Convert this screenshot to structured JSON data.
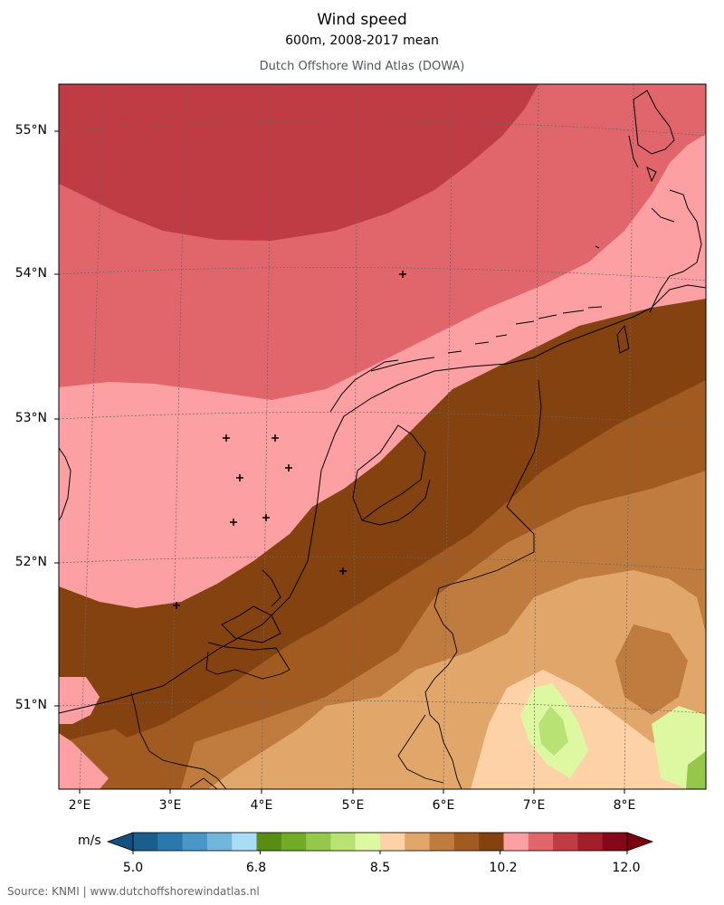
{
  "header": {
    "title": "Wind speed",
    "subtitle": "600m, 2008-2017 mean",
    "source_title": "Dutch Offshore Wind Atlas (DOWA)"
  },
  "map": {
    "lat_labels": [
      "55°N",
      "54°N",
      "53°N",
      "52°N",
      "51°N"
    ],
    "lon_labels": [
      "2°E",
      "3°E",
      "4°E",
      "5°E",
      "6°E",
      "7°E",
      "8°E"
    ],
    "lat_ticks": [
      55,
      54,
      53,
      52,
      51
    ],
    "lon_ticks": [
      2,
      3,
      4,
      5,
      6,
      7,
      8
    ]
  },
  "colorbar": {
    "unit": "m/s",
    "tick_labels": [
      "5.0",
      "6.8",
      "8.5",
      "10.2",
      "12.0"
    ],
    "tick_values": [
      5.0,
      6.8,
      8.5,
      10.2,
      12.0
    ],
    "range": [
      5.0,
      12.0
    ],
    "colors": [
      "#1a5e8c",
      "#2a78ad",
      "#4a96c7",
      "#72b5dd",
      "#a8ddf5",
      "#588c14",
      "#72ab25",
      "#95c74a",
      "#b9e275",
      "#def8a2",
      "#fdd2a6",
      "#e0a66a",
      "#c07c3f",
      "#a15b20",
      "#834210",
      "#fca0a4",
      "#e0666c",
      "#c03c44",
      "#a21e28",
      "#85081a"
    ],
    "under_color": "#135080",
    "over_color": "#7a0010"
  },
  "footer": {
    "credit": "Source: KNMI | www.dutchoffshorewindatlas.nl"
  }
}
